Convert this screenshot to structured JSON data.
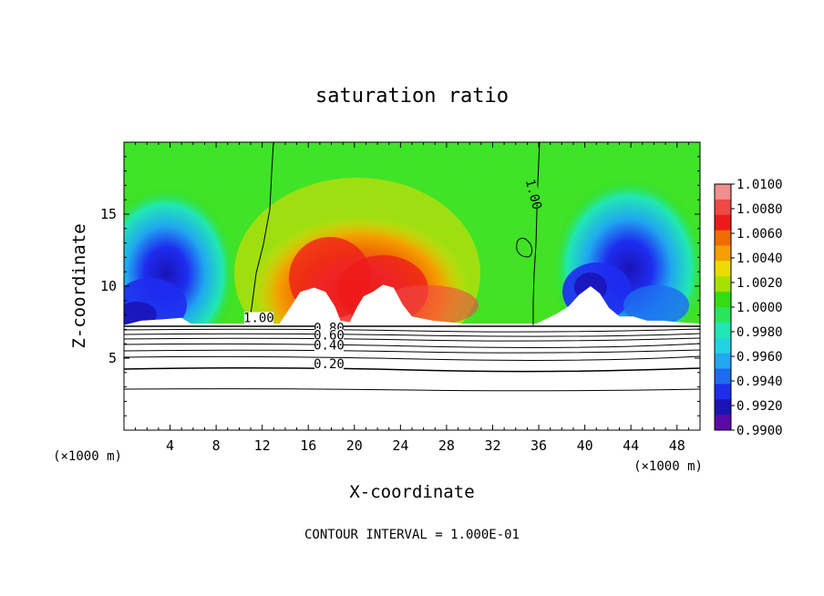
{
  "chart_data": {
    "type": "heatmap",
    "title": "saturation ratio",
    "xlabel": "X-coordinate",
    "ylabel": "Z-coordinate",
    "x_unit": "(×1000 m)",
    "y_unit": "(×1000 m)",
    "xlim": [
      0,
      50
    ],
    "ylim": [
      0,
      20
    ],
    "x_ticks": [
      "4",
      "8",
      "12",
      "16",
      "20",
      "24",
      "28",
      "32",
      "36",
      "40",
      "44",
      "48"
    ],
    "y_ticks": [
      "5",
      "10",
      "15"
    ],
    "footer": "CONTOUR INTERVAL = 1.000E-01",
    "colorbar": {
      "labels": [
        "1.0100",
        "1.0080",
        "1.0060",
        "1.0040",
        "1.0020",
        "1.0000",
        "0.9980",
        "0.9960",
        "0.9940",
        "0.9920",
        "0.9900"
      ],
      "colors": [
        "#f08f8f",
        "#f04747",
        "#ee1a1a",
        "#f06b00",
        "#f4a000",
        "#ecdd00",
        "#a8e000",
        "#33dd10",
        "#27e65e",
        "#21e8b2",
        "#20d4e2",
        "#20a8f0",
        "#1e6cf0",
        "#1e2cf0",
        "#1a14b8",
        "#5a0aa8"
      ]
    },
    "contour_labels": [
      {
        "text": "1.00",
        "x": 11.7,
        "z": 7.5,
        "rotate": 0
      },
      {
        "text": "1.00",
        "x": 35.2,
        "z": 16.3,
        "rotate": 75
      },
      {
        "text": "0.80",
        "x": 17.8,
        "z": 6.8,
        "rotate": 0
      },
      {
        "text": "0.60",
        "x": 17.8,
        "z": 6.3,
        "rotate": 0
      },
      {
        "text": "0.40",
        "x": 17.8,
        "z": 5.6,
        "rotate": 0
      },
      {
        "text": "0.20",
        "x": 17.8,
        "z": 4.3,
        "rotate": 0
      }
    ],
    "terrain_z": [
      [
        0,
        7.3
      ],
      [
        1.5,
        7.6
      ],
      [
        3.5,
        7.7
      ],
      [
        5,
        7.8
      ],
      [
        5.8,
        7.4
      ],
      [
        13.5,
        7.4
      ],
      [
        14.5,
        8.6
      ],
      [
        15.3,
        9.6
      ],
      [
        16.5,
        9.9
      ],
      [
        17.5,
        9.6
      ],
      [
        18.3,
        8.6
      ],
      [
        18.8,
        7.6
      ],
      [
        19.6,
        7.5
      ],
      [
        20.2,
        8.5
      ],
      [
        20.8,
        9.3
      ],
      [
        21.6,
        9.6
      ],
      [
        22.5,
        10.1
      ],
      [
        23.4,
        9.9
      ],
      [
        24.2,
        8.7
      ],
      [
        25,
        7.9
      ],
      [
        26.8,
        7.6
      ],
      [
        29.5,
        7.4
      ],
      [
        35.8,
        7.4
      ],
      [
        36.6,
        7.7
      ],
      [
        37.6,
        8.1
      ],
      [
        38.6,
        8.6
      ],
      [
        39.5,
        9.4
      ],
      [
        40.5,
        10
      ],
      [
        41.3,
        9.5
      ],
      [
        42.1,
        8.5
      ],
      [
        43,
        7.9
      ],
      [
        44.2,
        7.9
      ],
      [
        45.4,
        7.6
      ],
      [
        46.8,
        7.6
      ],
      [
        48,
        7.5
      ],
      [
        50,
        7.4
      ]
    ]
  }
}
